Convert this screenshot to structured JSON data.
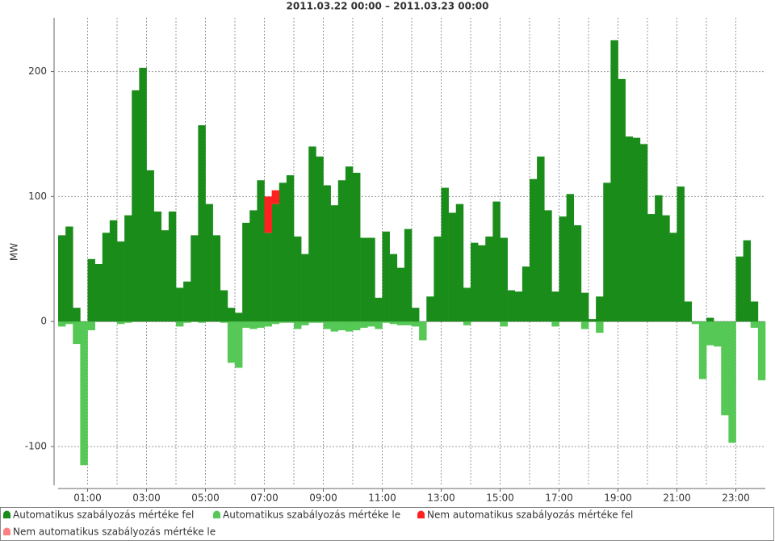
{
  "chart_data": {
    "type": "bar",
    "title": "2011.03.22 00:00 – 2011.03.23 00:00",
    "y_label": "MW",
    "categories": [
      null,
      null,
      null,
      null,
      "01:00",
      null,
      null,
      null,
      null,
      null,
      null,
      null,
      "03:00",
      null,
      null,
      null,
      null,
      null,
      null,
      null,
      "05:00",
      null,
      null,
      null,
      null,
      null,
      null,
      null,
      "07:00",
      null,
      null,
      null,
      null,
      null,
      null,
      null,
      "09:00",
      null,
      null,
      null,
      null,
      null,
      null,
      null,
      "11:00",
      null,
      null,
      null,
      null,
      null,
      null,
      null,
      "13:00",
      null,
      null,
      null,
      null,
      null,
      null,
      null,
      "15:00",
      null,
      null,
      null,
      null,
      null,
      null,
      null,
      "17:00",
      null,
      null,
      null,
      null,
      null,
      null,
      null,
      "19:00",
      null,
      null,
      null,
      null,
      null,
      null,
      null,
      "21:00",
      null,
      null,
      null,
      null,
      null,
      null,
      null,
      "23:00",
      null,
      null,
      null
    ],
    "series": [
      {
        "name": "Automatikus szabályozás mértéke fel",
        "color": "#1a8c1a",
        "values": [
          69,
          76,
          11,
          0,
          50,
          46,
          71,
          81,
          64,
          85,
          185,
          203,
          121,
          88,
          73,
          88,
          27,
          32,
          69,
          157,
          94,
          69,
          25,
          11,
          7,
          79,
          89,
          113,
          71,
          94,
          111,
          117,
          68,
          54,
          140,
          132,
          109,
          93,
          113,
          124,
          119,
          67,
          67,
          19,
          72,
          54,
          43,
          74,
          11,
          0,
          20,
          68,
          107,
          87,
          94,
          27,
          63,
          61,
          68,
          96,
          67,
          25,
          24,
          44,
          114,
          132,
          89,
          24,
          84,
          102,
          77,
          23,
          2,
          20,
          111,
          225,
          194,
          148,
          147,
          142,
          86,
          101,
          85,
          71,
          108,
          16,
          0,
          0,
          3,
          0,
          0,
          0,
          52,
          65,
          16,
          0
        ]
      },
      {
        "name": "Automatikus szabályozás mértéke le",
        "color": "#55c855",
        "values": [
          -4,
          -2,
          -18,
          -115,
          -7,
          0,
          0,
          0,
          -2,
          -1,
          0,
          0,
          0,
          0,
          0,
          0,
          -4,
          -1,
          0,
          -1,
          0,
          0,
          -1,
          -33,
          -37,
          -5,
          -6,
          -5,
          -4,
          -2,
          -1,
          -1,
          -6,
          -3,
          -1,
          -1,
          -6,
          -8,
          -7,
          -8,
          -7,
          -5,
          -4,
          -6,
          -1,
          -2,
          -3,
          -3,
          -4,
          -15,
          0,
          0,
          0,
          0,
          0,
          -3,
          0,
          0,
          0,
          0,
          -4,
          0,
          0,
          0,
          0,
          0,
          0,
          -4,
          0,
          0,
          0,
          -6,
          0,
          -9,
          0,
          0,
          0,
          0,
          0,
          0,
          0,
          0,
          0,
          0,
          0,
          0,
          -2,
          -46,
          -19,
          -20,
          -75,
          -97,
          0,
          0,
          -5,
          -47
        ]
      },
      {
        "name": "Nem automatikus szabályozás mértéke fel",
        "color": "#ff2020",
        "values": [
          0,
          0,
          0,
          0,
          0,
          0,
          0,
          0,
          0,
          0,
          0,
          0,
          0,
          0,
          0,
          0,
          0,
          0,
          0,
          0,
          0,
          0,
          0,
          0,
          0,
          0,
          0,
          0,
          29,
          11,
          0,
          0,
          0,
          0,
          0,
          0,
          0,
          0,
          0,
          0,
          0,
          0,
          0,
          0,
          0,
          0,
          0,
          0,
          0,
          0,
          0,
          0,
          0,
          0,
          0,
          0,
          0,
          0,
          0,
          0,
          0,
          0,
          0,
          0,
          0,
          0,
          0,
          0,
          0,
          0,
          0,
          0,
          0,
          0,
          0,
          0,
          0,
          0,
          0,
          0,
          0,
          0,
          0,
          0,
          0,
          0,
          0,
          0,
          0,
          0,
          0,
          0,
          0,
          0,
          0,
          0
        ]
      },
      {
        "name": "Nem automatikus szabályozás mértéke le",
        "color": "#ff8080",
        "values": [
          0,
          0,
          0,
          0,
          0,
          0,
          0,
          0,
          0,
          0,
          0,
          0,
          0,
          0,
          0,
          0,
          0,
          0,
          0,
          0,
          0,
          0,
          0,
          0,
          0,
          0,
          0,
          0,
          0,
          0,
          0,
          0,
          0,
          0,
          0,
          0,
          0,
          0,
          0,
          0,
          0,
          0,
          0,
          0,
          0,
          0,
          0,
          0,
          0,
          0,
          0,
          0,
          0,
          0,
          0,
          0,
          0,
          0,
          0,
          0,
          0,
          0,
          0,
          0,
          0,
          0,
          0,
          0,
          0,
          0,
          0,
          0,
          0,
          0,
          0,
          0,
          0,
          0,
          0,
          0,
          0,
          0,
          0,
          0,
          0,
          0,
          0,
          0,
          0,
          0,
          0,
          0,
          0,
          0,
          0,
          0
        ]
      }
    ],
    "ylim": [
      -131,
      243
    ],
    "yticks": [
      -100,
      0,
      100,
      200
    ],
    "grid": true
  }
}
